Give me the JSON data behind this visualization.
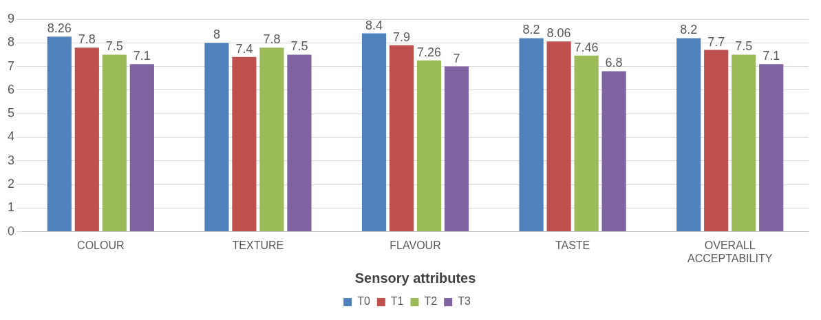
{
  "chart_data": {
    "type": "bar",
    "xlabel": "Sensory attributes",
    "categories": [
      "COLOUR",
      "TEXTURE",
      "FLAVOUR",
      "TASTE",
      "OVERALL ACCEPTABILITY"
    ],
    "series": [
      {
        "name": "T0",
        "color": "#4f81bd",
        "values": [
          8.26,
          8,
          8.4,
          8.2,
          8.2
        ]
      },
      {
        "name": "T1",
        "color": "#c0504d",
        "values": [
          7.8,
          7.4,
          7.9,
          8.06,
          7.7
        ]
      },
      {
        "name": "T2",
        "color": "#9bbb59",
        "values": [
          7.5,
          7.8,
          7.26,
          7.46,
          7.5
        ]
      },
      {
        "name": "T3",
        "color": "#8064a2",
        "values": [
          7.1,
          7.5,
          7,
          6.8,
          7.1
        ]
      }
    ],
    "ylim": [
      0,
      9
    ],
    "yticks": [
      0,
      1,
      2,
      3,
      4,
      5,
      6,
      7,
      8,
      9
    ],
    "grid": "y",
    "legend": "bottom",
    "data_labels": true
  }
}
